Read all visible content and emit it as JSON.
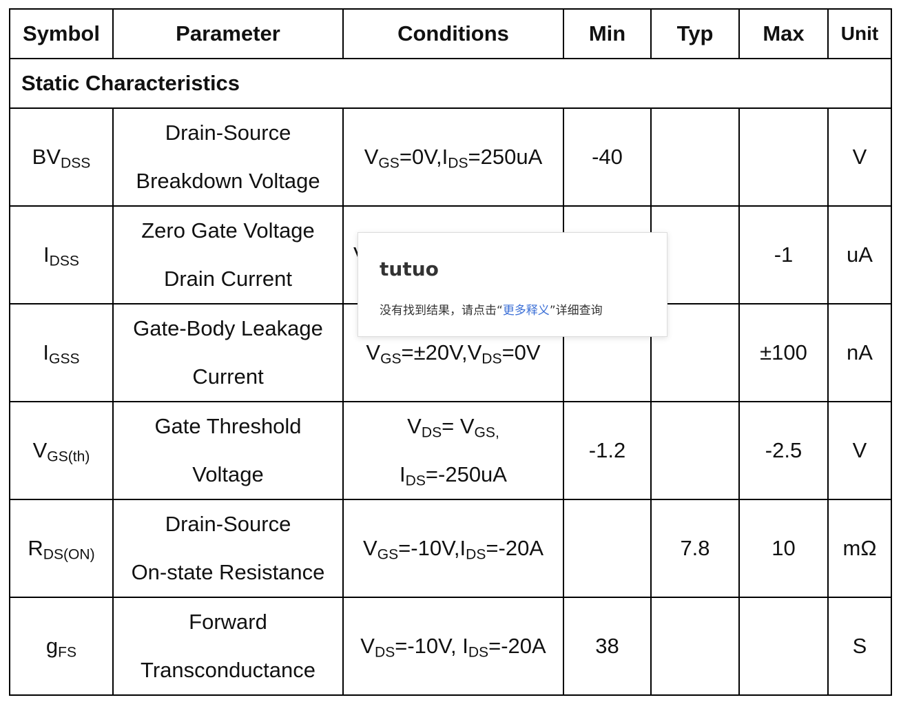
{
  "headers": {
    "symbol": "Symbol",
    "parameter": "Parameter",
    "conditions": "Conditions",
    "min": "Min",
    "typ": "Typ",
    "max": "Max",
    "unit": "Unit"
  },
  "section_title": "Static Characteristics",
  "rows": [
    {
      "symbol_main": "BV",
      "symbol_sub": "DSS",
      "param_line1": "Drain-Source",
      "param_line2": "Breakdown Voltage",
      "cond_a": "V",
      "cond_a_sub": "GS",
      "cond_b": "=0V,I",
      "cond_b_sub": "DS",
      "cond_c": "=250uA",
      "min": "-40",
      "typ": "",
      "max": "",
      "unit": "V"
    },
    {
      "symbol_main": "I",
      "symbol_sub": "DSS",
      "param_line1": "Zero Gate Voltage",
      "param_line2": "Drain Current",
      "cond_visible": "V",
      "min": "",
      "typ": "",
      "max": "-1",
      "unit": "uA"
    },
    {
      "symbol_main": "I",
      "symbol_sub": "GSS",
      "param_line1": "Gate-Body Leakage",
      "param_line2": "Current",
      "cond_a": "V",
      "cond_a_sub": "GS",
      "cond_b": "=±20V,V",
      "cond_b_sub": "DS",
      "cond_c": "=0V",
      "min": "",
      "typ": "",
      "max": "±100",
      "unit": "nA"
    },
    {
      "symbol_main": "V",
      "symbol_sub": "GS(th)",
      "param_line1": "Gate Threshold",
      "param_line2": "Voltage",
      "cond_l1_a": "V",
      "cond_l1_a_sub": "DS",
      "cond_l1_b": "= V",
      "cond_l1_b_sub": "GS,",
      "cond_l2_a": "I",
      "cond_l2_a_sub": "DS",
      "cond_l2_b": "=-250uA",
      "min": "-1.2",
      "typ": "",
      "max": "-2.5",
      "unit": "V"
    },
    {
      "symbol_main": "R",
      "symbol_sub": "DS(ON)",
      "param_line1": "Drain-Source",
      "param_line2": "On-state Resistance",
      "cond_a": "V",
      "cond_a_sub": "GS",
      "cond_b": "=-10V,I",
      "cond_b_sub": "DS",
      "cond_c": "=-20A",
      "min": "",
      "typ": "7.8",
      "max": "10",
      "unit": "mΩ"
    },
    {
      "symbol_main": "g",
      "symbol_sub": "FS",
      "param_line1": "Forward",
      "param_line2": "Transconductance",
      "cond_a": "V",
      "cond_a_sub": "DS",
      "cond_b": "=-10V, I",
      "cond_b_sub": "DS",
      "cond_c": "=-20A",
      "min": "38",
      "typ": "",
      "max": "",
      "unit": "S"
    }
  ],
  "popup": {
    "word": "tutuo",
    "msg_before": "没有找到结果，请点击“",
    "link": "更多释义",
    "msg_after": "”详细查询"
  }
}
